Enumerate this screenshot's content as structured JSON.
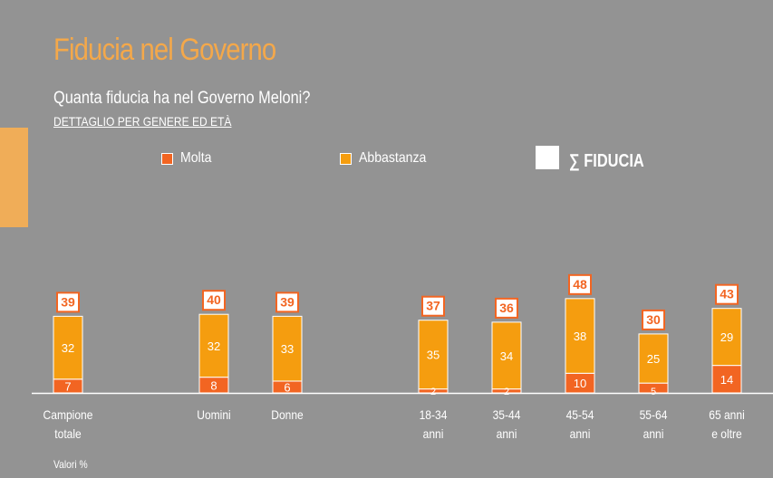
{
  "title": "Fiducia nel Governo",
  "subtitle": "Quanta fiducia ha nel Governo Meloni?",
  "detail": "DETTAGLIO PER GENERE ED ETÀ",
  "note": "Valori %",
  "colors": {
    "background": "#939393",
    "title": "#f4a84a",
    "molta": "#f26522",
    "abbastanza": "#f59d0f",
    "total_box_border": "#f26522"
  },
  "legend": {
    "molta": "Molta",
    "abbastanza": "Abbastanza",
    "total": "∑ FIDUCIA"
  },
  "chart_data": {
    "type": "bar",
    "stacked": true,
    "categories": [
      "Campione\ntotale",
      "Uomini",
      "Donne",
      "18-34\nanni",
      "35-44\nanni",
      "45-54\nanni",
      "55-64\nanni",
      "65 anni\ne oltre"
    ],
    "series": [
      {
        "name": "Molta",
        "values": [
          7,
          8,
          6,
          2,
          2,
          10,
          5,
          14
        ]
      },
      {
        "name": "Abbastanza",
        "values": [
          32,
          32,
          33,
          35,
          34,
          38,
          25,
          29
        ]
      }
    ],
    "totals_label": "∑ FIDUCIA",
    "totals": [
      39,
      40,
      39,
      37,
      36,
      48,
      30,
      43
    ],
    "ylim": [
      0,
      50
    ],
    "grid": false,
    "legend_position": "top"
  }
}
